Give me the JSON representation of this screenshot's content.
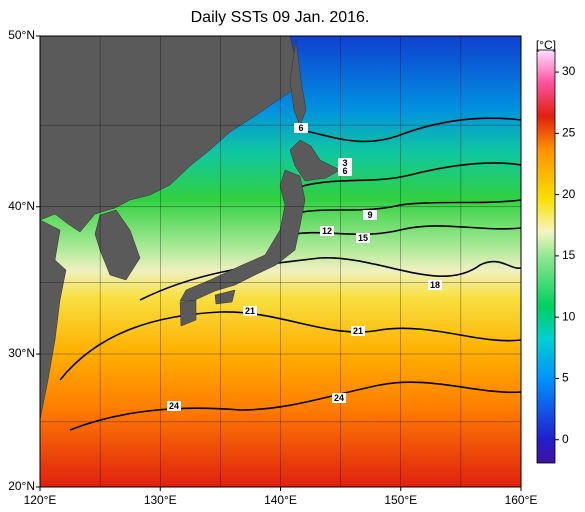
{
  "map": {
    "title": "Daily SSTs 09 Jan. 2016.",
    "unit": "[°C]",
    "lon_range": [
      120,
      160
    ],
    "lat_range": [
      20,
      50
    ],
    "lon_ticks": [
      {
        "value": 120,
        "label": "120°E"
      },
      {
        "value": 130,
        "label": "130°E"
      },
      {
        "value": 140,
        "label": "140°E"
      },
      {
        "value": 150,
        "label": "150°E"
      },
      {
        "value": 160,
        "label": "160°E"
      }
    ],
    "lat_ticks": [
      {
        "value": 20,
        "label": "20°N"
      },
      {
        "value": 30,
        "label": "30°N"
      },
      {
        "value": 40,
        "label": "40°N"
      },
      {
        "value": 50,
        "label": "50°N"
      }
    ],
    "grid_lon": [
      125,
      130,
      135,
      140,
      145,
      150,
      155
    ],
    "grid_lat": [
      25,
      30,
      35,
      40,
      45
    ],
    "colorbar": {
      "range": [
        -1.9,
        31.8
      ],
      "ticks": [
        0,
        5,
        10,
        15,
        20,
        25,
        30
      ]
    },
    "contour_labels": [
      3,
      6,
      6,
      9,
      12,
      15,
      18,
      21,
      21,
      24,
      24
    ]
  }
}
